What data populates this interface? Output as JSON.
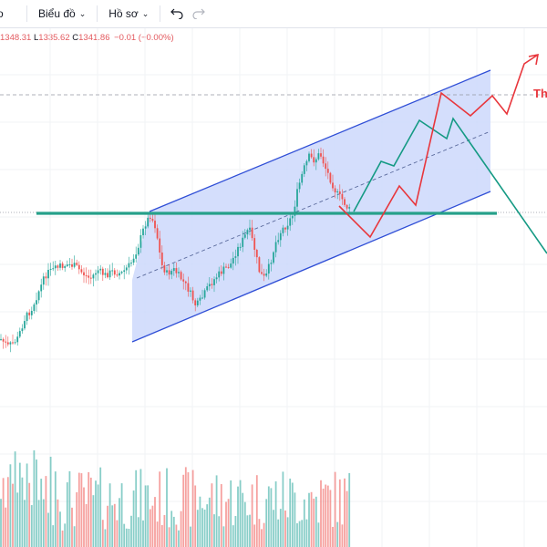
{
  "toolbar": {
    "truncated_left": "o",
    "chart_menu_label": "Biểu đồ",
    "profile_menu_label": "Hồ sơ",
    "undo_icon": "undo-icon",
    "redo_icon": "redo-icon"
  },
  "ohlc": {
    "high_value": "1348.31",
    "low_key": "L",
    "low_value": "1335.62",
    "close_key": "C",
    "close_value": "1341.86",
    "change": "−0.01 (−0.00%)"
  },
  "annotation_text": "Th",
  "colors": {
    "up": "#26a69a",
    "down": "#ef5350",
    "up_volume": "#26a69a",
    "down_volume": "#ef5350",
    "channel_fill": "#cdd8fb",
    "channel_line": "#2f4ed6",
    "support_line": "#26a08a",
    "path_red": "#e8363c",
    "path_green": "#159a84",
    "grid": "#f1f3f6"
  }
}
